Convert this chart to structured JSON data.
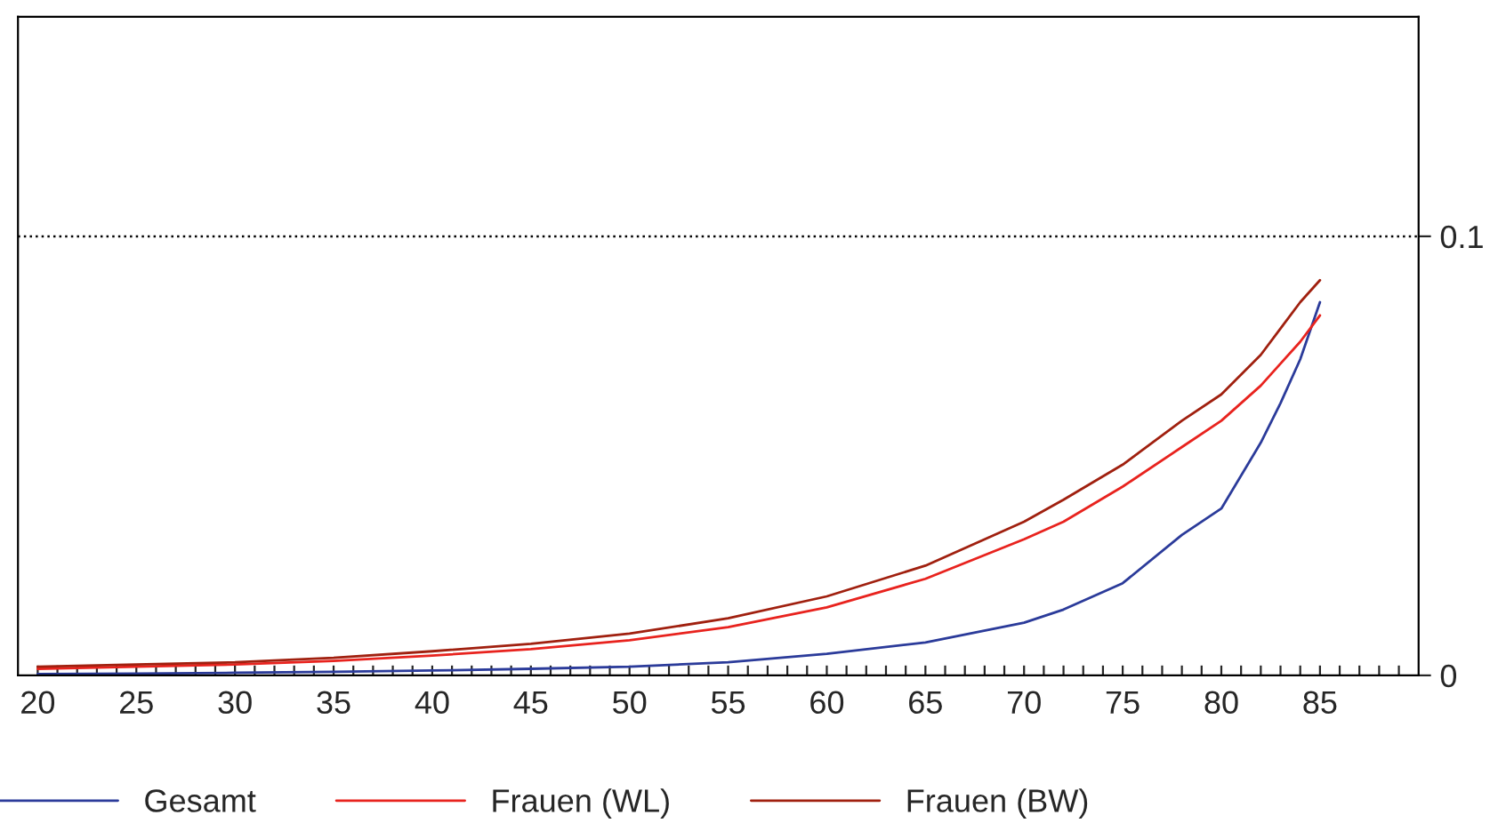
{
  "chart_data": {
    "type": "line",
    "x": [
      20,
      25,
      30,
      35,
      40,
      45,
      50,
      55,
      60,
      65,
      70,
      72,
      75,
      78,
      80,
      82,
      83,
      84,
      85
    ],
    "series": [
      {
        "name": "Gesamt",
        "color": "#2b3b9a",
        "values": [
          0.0003,
          0.0004,
          0.0006,
          0.0008,
          0.0011,
          0.0015,
          0.002,
          0.003,
          0.0049,
          0.0075,
          0.012,
          0.015,
          0.021,
          0.032,
          0.038,
          0.053,
          0.062,
          0.072,
          0.085
        ]
      },
      {
        "name": "Frauen (WL)",
        "color": "#e8231e",
        "values": [
          0.0015,
          0.002,
          0.0025,
          0.0033,
          0.0045,
          0.006,
          0.008,
          0.011,
          0.0155,
          0.022,
          0.031,
          0.035,
          0.043,
          0.052,
          0.058,
          0.066,
          0.071,
          0.076,
          0.082
        ]
      },
      {
        "name": "Frauen (BW)",
        "color": "#a0200f",
        "values": [
          0.002,
          0.0025,
          0.003,
          0.004,
          0.0055,
          0.0072,
          0.0095,
          0.013,
          0.018,
          0.025,
          0.035,
          0.04,
          0.048,
          0.058,
          0.064,
          0.073,
          0.079,
          0.085,
          0.09
        ]
      }
    ],
    "xlim": [
      19,
      90
    ],
    "ylim": [
      0,
      0.15
    ],
    "xticks": [
      20,
      {
        "value": 21,
        "label": null
      },
      {
        "value": 22,
        "label": null
      },
      {
        "value": 23,
        "label": null
      },
      {
        "value": 24,
        "label": null
      },
      25,
      {
        "value": 26,
        "label": null
      },
      {
        "value": 27,
        "label": null
      },
      {
        "value": 28,
        "label": null
      },
      {
        "value": 29,
        "label": null
      },
      30,
      {
        "value": 31,
        "label": null
      },
      {
        "value": 32,
        "label": null
      },
      {
        "value": 33,
        "label": null
      },
      {
        "value": 34,
        "label": null
      },
      35,
      {
        "value": 36,
        "label": null
      },
      {
        "value": 37,
        "label": null
      },
      {
        "value": 38,
        "label": null
      },
      {
        "value": 39,
        "label": null
      },
      40,
      {
        "value": 41,
        "label": null
      },
      {
        "value": 42,
        "label": null
      },
      {
        "value": 43,
        "label": null
      },
      {
        "value": 44,
        "label": null
      },
      45,
      {
        "value": 46,
        "label": null
      },
      {
        "value": 47,
        "label": null
      },
      {
        "value": 48,
        "label": null
      },
      {
        "value": 49,
        "label": null
      },
      50,
      {
        "value": 51,
        "label": null
      },
      {
        "value": 52,
        "label": null
      },
      {
        "value": 53,
        "label": null
      },
      {
        "value": 54,
        "label": null
      },
      55,
      {
        "value": 56,
        "label": null
      },
      {
        "value": 57,
        "label": null
      },
      {
        "value": 58,
        "label": null
      },
      {
        "value": 59,
        "label": null
      },
      60,
      {
        "value": 61,
        "label": null
      },
      {
        "value": 62,
        "label": null
      },
      {
        "value": 63,
        "label": null
      },
      {
        "value": 64,
        "label": null
      },
      65,
      {
        "value": 66,
        "label": null
      },
      {
        "value": 67,
        "label": null
      },
      {
        "value": 68,
        "label": null
      },
      {
        "value": 69,
        "label": null
      },
      70,
      {
        "value": 71,
        "label": null
      },
      {
        "value": 72,
        "label": null
      },
      {
        "value": 73,
        "label": null
      },
      {
        "value": 74,
        "label": null
      },
      75,
      {
        "value": 76,
        "label": null
      },
      {
        "value": 77,
        "label": null
      },
      {
        "value": 78,
        "label": null
      },
      {
        "value": 79,
        "label": null
      },
      80,
      {
        "value": 81,
        "label": null
      },
      {
        "value": 82,
        "label": null
      },
      {
        "value": 83,
        "label": null
      },
      {
        "value": 84,
        "label": null
      },
      85,
      {
        "value": 86,
        "label": null
      },
      {
        "value": 87,
        "label": null
      },
      {
        "value": 88,
        "label": null
      },
      {
        "value": 89,
        "label": null
      }
    ],
    "yticks": [
      0,
      0.1
    ],
    "ref_lines": [
      {
        "axis": "y",
        "value": 0.1,
        "label": null,
        "color": "#000000",
        "line_style": "dotted"
      }
    ],
    "legend": "bottom",
    "grid": false,
    "marker": "none",
    "line_style": "solid"
  }
}
